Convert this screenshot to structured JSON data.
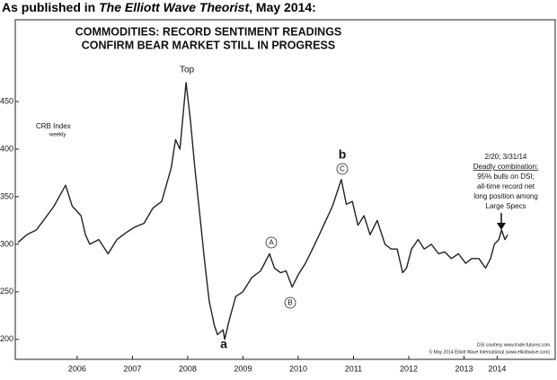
{
  "header": {
    "prefix": "As published in ",
    "publication": "The Elliott Wave Theorist",
    "suffix": ", May 2014:"
  },
  "chart_data": {
    "type": "line",
    "title_lines": [
      "COMMODITIES: RECORD SENTIMENT READINGS",
      "CONFIRM BEAR MARKET STILL IN PROGRESS"
    ],
    "series_label": "CRB Index",
    "series_sublabel": "weekly",
    "color": "#222222",
    "x": [
      2005.43,
      2005.59,
      2005.76,
      2005.89,
      2006.08,
      2006.29,
      2006.41,
      2006.57,
      2006.65,
      2006.73,
      2006.89,
      2007.06,
      2007.22,
      2007.38,
      2007.54,
      2007.71,
      2007.87,
      2008.03,
      2008.2,
      2008.28,
      2008.36,
      2008.47,
      2008.55,
      2008.63,
      2008.72,
      2008.81,
      2008.89,
      2008.98,
      2009.04,
      2009.14,
      2009.17,
      2009.25,
      2009.37,
      2009.5,
      2009.66,
      2009.82,
      2009.98,
      2010.07,
      2010.18,
      2010.28,
      2010.39,
      2010.5,
      2010.63,
      2010.8,
      2010.96,
      2011.12,
      2011.28,
      2011.37,
      2011.48,
      2011.58,
      2011.69,
      2011.8,
      2011.93,
      2012.07,
      2012.18,
      2012.29,
      2012.39,
      2012.46,
      2012.55,
      2012.67,
      2012.78,
      2012.91,
      2013.04,
      2013.15,
      2013.27,
      2013.4,
      2013.53,
      2013.64,
      2013.77,
      2013.89,
      2013.98,
      2014.05,
      2014.13,
      2014.18,
      2014.24,
      2014.29
    ],
    "values": [
      302,
      310,
      315,
      325,
      340,
      362,
      340,
      330,
      310,
      300,
      305,
      290,
      305,
      312,
      318,
      322,
      338,
      345,
      380,
      410,
      400,
      470,
      430,
      380,
      330,
      280,
      240,
      215,
      205,
      210,
      200,
      220,
      245,
      250,
      265,
      272,
      290,
      275,
      270,
      272,
      255,
      268,
      280,
      300,
      320,
      340,
      368,
      342,
      345,
      320,
      330,
      310,
      325,
      300,
      295,
      295,
      270,
      275,
      295,
      305,
      295,
      300,
      290,
      292,
      285,
      290,
      280,
      285,
      285,
      275,
      285,
      300,
      305,
      315,
      305,
      310
    ],
    "xlim": [
      2005.38,
      2015.15
    ],
    "ylim": [
      179,
      536
    ],
    "yticks": [
      200,
      250,
      300,
      350,
      400,
      450
    ],
    "xticks": [
      {
        "value": 2006.5,
        "label": "2006"
      },
      {
        "value": 2007.5,
        "label": "2007"
      },
      {
        "value": 2008.5,
        "label": "2008"
      },
      {
        "value": 2009.5,
        "label": "2009"
      },
      {
        "value": 2010.5,
        "label": "2010"
      },
      {
        "value": 2011.5,
        "label": "2011"
      },
      {
        "value": 2012.5,
        "label": "2012"
      },
      {
        "value": 2013.5,
        "label": "2013"
      },
      {
        "value": 2014.1,
        "label": "2014"
      }
    ],
    "annotations": [
      "Top",
      "a",
      "A",
      "B",
      "b",
      "C",
      "2/20; 3/31/14",
      "Deadly combination:",
      "95% bulls on DSI;",
      "all-time record net",
      "long position among",
      "Large Specs",
      "DSI courtesy www.trade-futures.com",
      "© May 2014 Elliott Wave International (www.elliottwave.com)"
    ]
  }
}
